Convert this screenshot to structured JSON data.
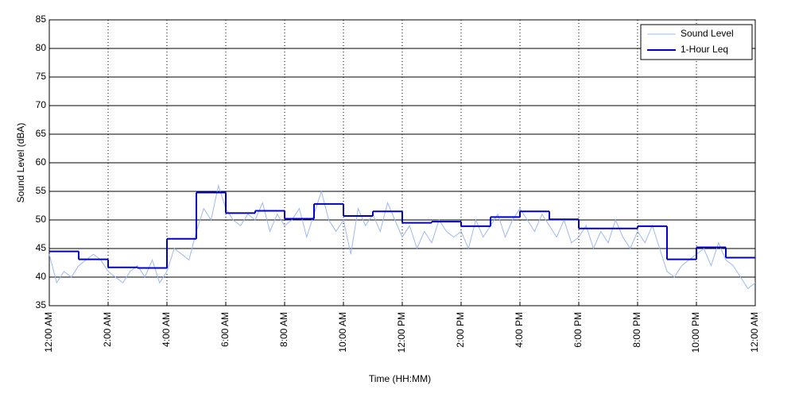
{
  "chart_data": {
    "type": "line",
    "x_label": "Time (HH:MM)",
    "y_label": "Sound Level (dBA)",
    "xlim": [
      0,
      24
    ],
    "xticks": [
      {
        "value": 0,
        "label": "12:00 AM"
      },
      {
        "value": 2,
        "label": "2:00 AM"
      },
      {
        "value": 4,
        "label": "4:00 AM"
      },
      {
        "value": 6,
        "label": "6:00 AM"
      },
      {
        "value": 8,
        "label": "8:00 AM"
      },
      {
        "value": 10,
        "label": "10:00 AM"
      },
      {
        "value": 12,
        "label": "12:00 PM"
      },
      {
        "value": 14,
        "label": "2:00 PM"
      },
      {
        "value": 16,
        "label": "4:00 PM"
      },
      {
        "value": 18,
        "label": "6:00 PM"
      },
      {
        "value": 20,
        "label": "8:00 PM"
      },
      {
        "value": 22,
        "label": "10:00 PM"
      },
      {
        "value": 24,
        "label": "12:00 AM"
      }
    ],
    "ylim": [
      35,
      85
    ],
    "yticks": [
      35,
      40,
      45,
      50,
      55,
      60,
      65,
      70,
      75,
      80,
      85
    ],
    "grid": true,
    "legend": "upper right",
    "series": [
      {
        "name": "Sound Level",
        "color": "#9db8f0",
        "step": false,
        "x": [
          0,
          0.25,
          0.5,
          0.75,
          1,
          1.25,
          1.5,
          1.75,
          2,
          2.25,
          2.5,
          2.75,
          3,
          3.25,
          3.5,
          3.75,
          4,
          4.25,
          4.5,
          4.75,
          5,
          5.25,
          5.5,
          5.75,
          6,
          6.25,
          6.5,
          6.75,
          7,
          7.25,
          7.5,
          7.75,
          8,
          8.25,
          8.5,
          8.75,
          9,
          9.25,
          9.5,
          9.75,
          10,
          10.25,
          10.5,
          10.75,
          11,
          11.25,
          11.5,
          11.75,
          12,
          12.25,
          12.5,
          12.75,
          13,
          13.25,
          13.5,
          13.75,
          14,
          14.25,
          14.5,
          14.75,
          15,
          15.25,
          15.5,
          15.75,
          16,
          16.25,
          16.5,
          16.75,
          17,
          17.25,
          17.5,
          17.75,
          18,
          18.25,
          18.5,
          18.75,
          19,
          19.25,
          19.5,
          19.75,
          20,
          20.25,
          20.5,
          20.75,
          21,
          21.25,
          21.5,
          21.75,
          22,
          22.25,
          22.5,
          22.75,
          23,
          23.25,
          23.5,
          23.75,
          24
        ],
        "values": [
          44,
          39,
          41,
          40,
          42,
          43,
          44,
          43,
          41,
          40,
          39,
          41,
          42,
          40,
          43,
          39,
          41,
          45,
          44,
          43,
          48,
          52,
          50,
          56,
          52,
          50,
          49,
          51,
          50,
          53,
          48,
          51,
          49,
          50,
          52,
          47,
          51,
          55,
          50,
          48,
          50,
          44,
          52,
          49,
          51,
          48,
          53,
          50,
          47,
          49,
          45,
          48,
          46,
          50,
          48,
          47,
          48,
          45,
          50,
          47,
          49,
          51,
          47,
          50,
          52,
          50,
          48,
          51,
          49,
          47,
          50,
          46,
          47,
          49,
          45,
          48,
          46,
          50,
          47,
          45,
          48,
          46,
          49,
          45,
          41,
          40,
          42,
          43,
          44,
          45,
          42,
          46,
          43,
          42,
          40,
          38,
          39
        ]
      },
      {
        "name": "1-Hour Leq",
        "color": "#0000c8",
        "step": true,
        "x": [
          0,
          1,
          2,
          3,
          4,
          5,
          6,
          7,
          8,
          9,
          10,
          11,
          12,
          13,
          14,
          15,
          16,
          17,
          18,
          19,
          20,
          21,
          22,
          23
        ],
        "values": [
          44.5,
          43.1,
          41.7,
          41.6,
          46.7,
          54.8,
          51.2,
          51.6,
          50.2,
          52.8,
          50.7,
          51.5,
          49.5,
          49.7,
          48.9,
          50.5,
          51.5,
          50.1,
          48.5,
          48.5,
          48.9,
          43.1,
          45.2,
          43.4
        ]
      }
    ]
  }
}
